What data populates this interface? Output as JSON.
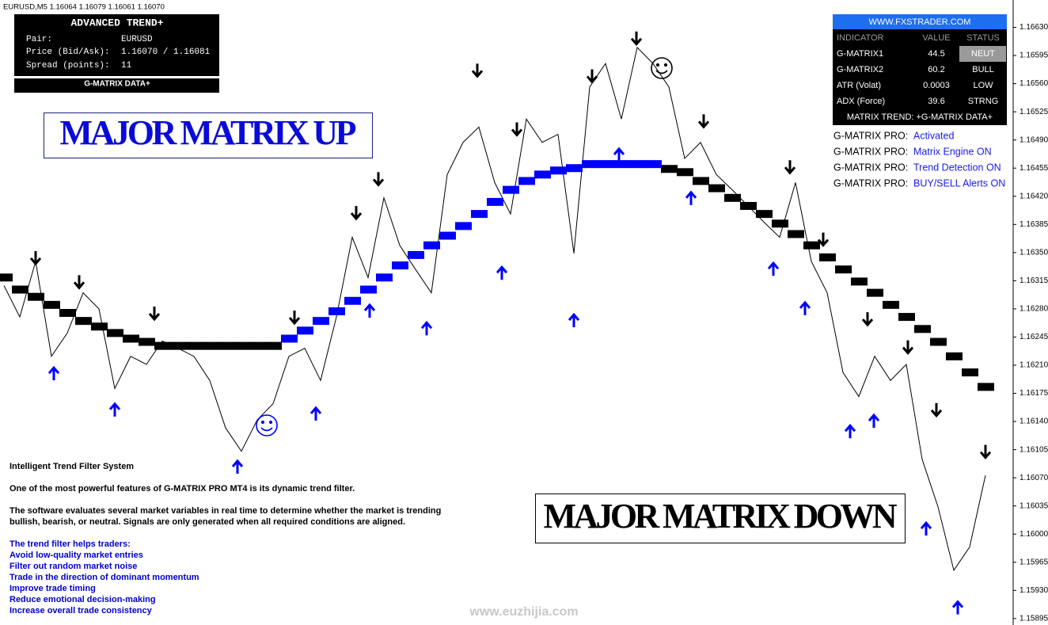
{
  "header_bar": "EURUSD,M5  1.16064 1.16079 1.16061 1.16070",
  "trend_panel": {
    "title": "ADVANCED TREND+",
    "rows": [
      [
        "Pair:",
        "EURUSD"
      ],
      [
        "Price (Bid/Ask):",
        "1.16070 / 1.16081"
      ],
      [
        "Spread (points):",
        11
      ]
    ],
    "footer": "G-MATRIX DATA+"
  },
  "labels": {
    "up": "MAJOR MATRIX UP",
    "down": "MAJOR MATRIX DOWN"
  },
  "indicator_table": {
    "site": "WWW.FXSTRADER.COM",
    "columns": [
      "INDICATOR",
      "VALUE",
      "STATUS"
    ],
    "rows": [
      [
        "G-MATRIX1",
        44.5,
        "NEUT"
      ],
      [
        "G-MATRIX2",
        60.2,
        "BULL"
      ],
      [
        "ATR (Volat)",
        0.0003,
        "LOW"
      ],
      [
        "ADX (Force)",
        39.6,
        "STRNG"
      ]
    ],
    "footer": "MATRIX TREND: +G-MATRIX DATA+"
  },
  "pro_status": [
    {
      "key": "G-MATRIX PRO:",
      "value": "Activated"
    },
    {
      "key": "G-MATRIX PRO:",
      "value": "Matrix Engine ON"
    },
    {
      "key": "G-MATRIX PRO:",
      "value": "Trend Detection ON"
    },
    {
      "key": "G-MATRIX PRO:",
      "value": "BUY/SELL Alerts ON"
    }
  ],
  "description": {
    "heading": "Intelligent Trend Filter System",
    "lead": "One of the most powerful features of G-MATRIX PRO MT4 is its dynamic trend filter.",
    "paragraph": [
      "The software evaluates several market variables in real time to determine whether the market is trending",
      "bullish, bearish, or neutral. Signals are only generated when all required conditions are aligned."
    ],
    "list_title": "The trend filter helps traders:",
    "items": [
      "Avoid low-quality market entries",
      "Filter out random market noise",
      "Trade in the direction of dominant momentum",
      "Improve trade timing",
      "Reduce emotional decision-making",
      "Increase overall trade consistency"
    ]
  },
  "watermark": "www.euzhijia.com",
  "chart_data": {
    "type": "line",
    "ylim": [
      1.15887,
      1.16664
    ],
    "yticks": [
      {
        "value": 1.1663,
        "label": "1.16630"
      },
      1.16595,
      {
        "value": 1.1656,
        "label": "1.16560"
      },
      1.16525,
      {
        "value": 1.1649,
        "label": "1.16490"
      },
      1.16455,
      {
        "value": 1.1642,
        "label": "1.16420"
      },
      1.16385,
      {
        "value": 1.1635,
        "label": "1.16350"
      },
      1.16315,
      {
        "value": 1.1628,
        "label": "1.16280"
      },
      1.16245,
      {
        "value": 1.1621,
        "label": "1.16210"
      },
      1.16175,
      {
        "value": 1.1614,
        "label": "1.16140"
      },
      1.16105,
      {
        "value": 1.1607,
        "label": "1.16070"
      },
      1.16035,
      {
        "value": 1.16,
        "label": "1.16000"
      },
      1.15965,
      {
        "value": 1.1593,
        "label": "1.15930"
      },
      1.15895
    ],
    "series": [
      {
        "color": "#000000",
        "values": [
          1.16309,
          1.1627,
          1.16339,
          1.16221,
          1.1625,
          1.163,
          1.1628,
          1.16181,
          1.16221,
          1.16211,
          1.1624,
          1.16231,
          1.16221,
          1.16191,
          1.16132,
          1.16103,
          1.16142,
          1.16162,
          1.16221,
          1.16231,
          1.16191,
          1.1627,
          1.16369,
          1.16319,
          1.16418,
          1.16359,
          1.16329,
          1.163,
          1.16447,
          1.16487,
          1.16506,
          1.16437,
          1.16398,
          1.16516,
          1.16487,
          1.16497,
          1.16349,
          1.16556,
          1.16585,
          1.16516,
          1.16605,
          1.16585,
          1.16556,
          1.16467,
          1.16487,
          1.16447,
          1.16428,
          1.16408,
          1.16388,
          1.16369,
          1.16437,
          1.16339,
          1.163,
          1.16201,
          1.16171,
          1.16221,
          1.16191,
          1.16211,
          1.16093,
          1.16034,
          1.15955,
          1.15984,
          1.16073
        ]
      }
    ],
    "trend": [
      {
        "color": "#000000",
        "values": [
          1.16319,
          1.16304,
          1.16295,
          1.16285,
          1.16275,
          1.16265,
          1.16258,
          1.1625,
          1.16243,
          1.16239,
          1.16234,
          1.16234,
          1.16234,
          1.16234,
          1.16234,
          1.16234,
          1.16234,
          1.16234,
          null,
          null,
          null,
          null,
          null,
          null,
          null,
          null,
          null,
          null,
          null,
          null,
          null,
          null,
          null,
          null,
          null,
          null,
          null,
          null,
          null,
          null,
          null,
          null,
          1.16454,
          1.1645,
          1.16439,
          1.1643,
          1.16418,
          1.16408,
          1.16398,
          1.16386,
          1.16373,
          1.16359,
          1.16344,
          1.16329,
          1.16314,
          1.163,
          1.16285,
          1.1627,
          1.16255,
          1.16239,
          1.16221,
          1.16201,
          1.16183
        ]
      },
      {
        "color": "#0000ff",
        "values": [
          null,
          null,
          null,
          null,
          null,
          null,
          null,
          null,
          null,
          null,
          null,
          null,
          null,
          null,
          null,
          null,
          null,
          null,
          1.16243,
          1.16253,
          1.16265,
          1.16277,
          1.1629,
          1.16304,
          1.16319,
          1.16334,
          1.16347,
          1.16359,
          1.16371,
          1.16383,
          1.16398,
          1.16413,
          1.16428,
          1.16439,
          1.16447,
          1.16452,
          1.16455,
          1.1646,
          1.1646,
          1.1646,
          1.1646,
          1.1646,
          null,
          null,
          null,
          null,
          null,
          null,
          null,
          null,
          null,
          null,
          null,
          null,
          null,
          null,
          null,
          null,
          null,
          null,
          null,
          null,
          null
        ]
      }
    ],
    "signals": [
      {
        "color": "#000000",
        "direction": "down",
        "x": [
          2,
          4.75,
          9.5,
          18.35,
          22.25,
          23.65,
          29.9,
          32.4,
          37.15,
          39.95,
          44.2,
          49.65,
          51.75,
          54.55,
          57.1,
          58.9,
          62
        ],
        "values": [
          1.16344,
          1.16314,
          1.16275,
          1.1627,
          1.164,
          1.16442,
          1.16577,
          1.16504,
          1.1657,
          1.16617,
          1.16514,
          1.16457,
          1.16367,
          1.16268,
          1.16233,
          1.16155,
          1.16103
        ]
      },
      {
        "color": "#0000ff",
        "direction": "up",
        "x": [
          3.15,
          7,
          14.75,
          19.7,
          23.1,
          26.7,
          31.45,
          36,
          38.85,
          43.4,
          48.6,
          50.6,
          53.45,
          54.95,
          58.25,
          60.25
        ],
        "values": [
          1.16199,
          1.16154,
          1.16083,
          1.16149,
          1.16277,
          1.16255,
          1.16324,
          1.16265,
          1.16471,
          1.16417,
          1.16329,
          1.1628,
          1.16127,
          1.1614,
          1.16006,
          1.15908
        ]
      }
    ]
  }
}
